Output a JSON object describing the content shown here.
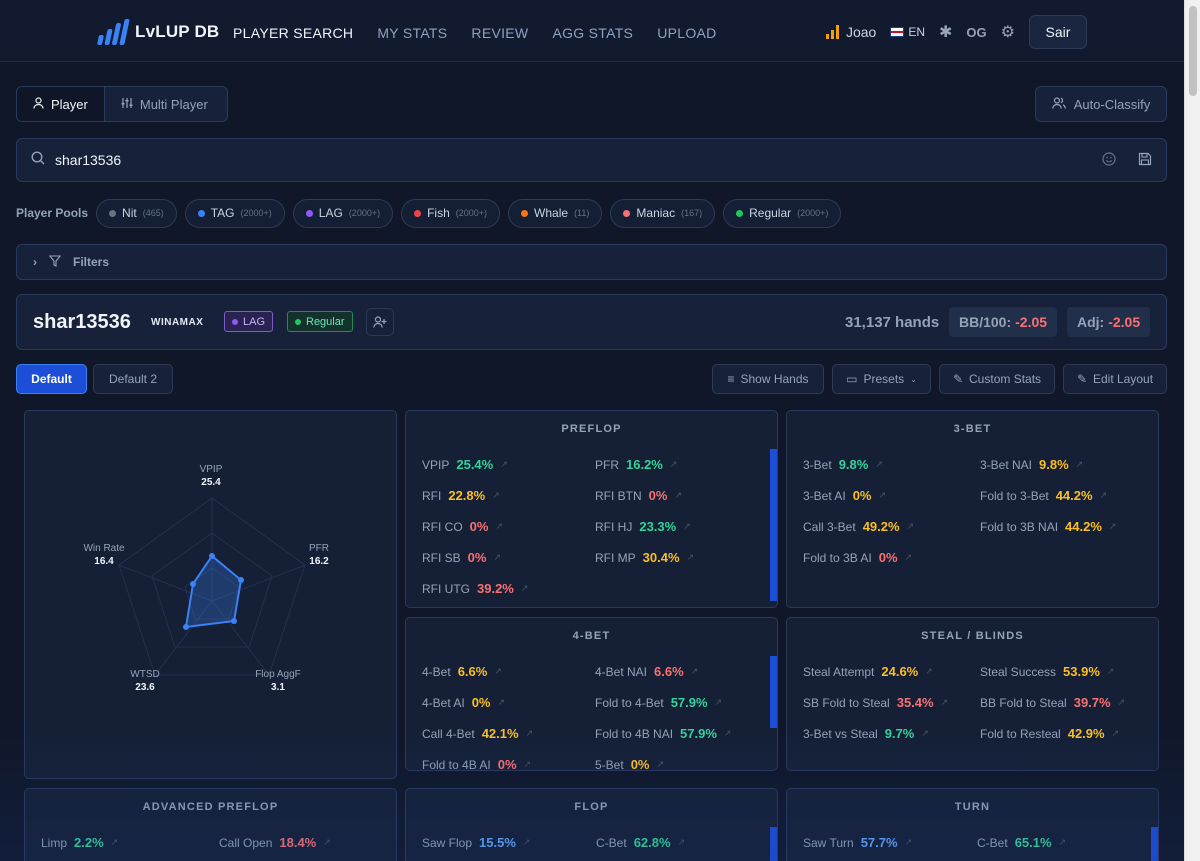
{
  "brand": {
    "name": "LvLUP DB"
  },
  "nav": {
    "links": [
      "PLAYER SEARCH",
      "MY STATS",
      "REVIEW",
      "AGG STATS",
      "UPLOAD"
    ],
    "user": "Joao",
    "lang": "EN",
    "og": "OG",
    "logout": "Sair"
  },
  "mode": {
    "player": "Player",
    "multi": "Multi Player",
    "auto_classify": "Auto-Classify"
  },
  "search": {
    "value": "shar13536"
  },
  "pools": {
    "label": "Player Pools",
    "items": [
      {
        "name": "Nit",
        "count": "(465)",
        "color": "#6b7280"
      },
      {
        "name": "TAG",
        "count": "(2000+)",
        "color": "#3b82f6"
      },
      {
        "name": "LAG",
        "count": "(2000+)",
        "color": "#8b5cf6"
      },
      {
        "name": "Fish",
        "count": "(2000+)",
        "color": "#ef4444"
      },
      {
        "name": "Whale",
        "count": "(11)",
        "color": "#f97316"
      },
      {
        "name": "Maniac",
        "count": "(167)",
        "color": "#f87171"
      },
      {
        "name": "Regular",
        "count": "(2000+)",
        "color": "#22c55e"
      }
    ]
  },
  "filters": {
    "label": "Filters"
  },
  "player": {
    "name": "shar13536",
    "site": "WINAMAX",
    "tag_lag": "LAG",
    "tag_regular": "Regular",
    "hands": "31,137 hands",
    "bb_label": "BB/100:",
    "bb_value": "-2.05",
    "adj_label": "Adj:",
    "adj_value": "-2.05"
  },
  "layout": {
    "tab_default": "Default",
    "tab_default2": "Default 2",
    "show_hands": "Show Hands",
    "presets": "Presets",
    "custom_stats": "Custom Stats",
    "edit_layout": "Edit Layout"
  },
  "radar": {
    "labels": [
      {
        "name": "VPIP",
        "value": "25.4"
      },
      {
        "name": "PFR",
        "value": "16.2"
      },
      {
        "name": "Flop AggF",
        "value": "3.1"
      },
      {
        "name": "WTSD",
        "value": "23.6"
      },
      {
        "name": "Win Rate",
        "value": "16.4"
      }
    ]
  },
  "panels": {
    "preflop": {
      "title": "PREFLOP",
      "stats": [
        {
          "label": "VPIP",
          "value": "25.4%",
          "c": "g"
        },
        {
          "label": "PFR",
          "value": "16.2%",
          "c": "g"
        },
        {
          "label": "RFI",
          "value": "22.8%",
          "c": "y"
        },
        {
          "label": "RFI BTN",
          "value": "0%",
          "c": "r"
        },
        {
          "label": "RFI CO",
          "value": "0%",
          "c": "r"
        },
        {
          "label": "RFI HJ",
          "value": "23.3%",
          "c": "g"
        },
        {
          "label": "RFI SB",
          "value": "0%",
          "c": "r"
        },
        {
          "label": "RFI MP",
          "value": "30.4%",
          "c": "y"
        },
        {
          "label": "RFI UTG",
          "value": "39.2%",
          "c": "r"
        }
      ]
    },
    "threebet": {
      "title": "3-BET",
      "stats": [
        {
          "label": "3-Bet",
          "value": "9.8%",
          "c": "g"
        },
        {
          "label": "3-Bet NAI",
          "value": "9.8%",
          "c": "y"
        },
        {
          "label": "3-Bet AI",
          "value": "0%",
          "c": "y"
        },
        {
          "label": "Fold to 3-Bet",
          "value": "44.2%",
          "c": "y"
        },
        {
          "label": "Call 3-Bet",
          "value": "49.2%",
          "c": "y"
        },
        {
          "label": "Fold to 3B NAI",
          "value": "44.2%",
          "c": "y"
        },
        {
          "label": "Fold to 3B AI",
          "value": "0%",
          "c": "r"
        }
      ]
    },
    "fourbet": {
      "title": "4-BET",
      "stats": [
        {
          "label": "4-Bet",
          "value": "6.6%",
          "c": "y"
        },
        {
          "label": "4-Bet NAI",
          "value": "6.6%",
          "c": "r"
        },
        {
          "label": "4-Bet AI",
          "value": "0%",
          "c": "y"
        },
        {
          "label": "Fold to 4-Bet",
          "value": "57.9%",
          "c": "g"
        },
        {
          "label": "Call 4-Bet",
          "value": "42.1%",
          "c": "y"
        },
        {
          "label": "Fold to 4B NAI",
          "value": "57.9%",
          "c": "g"
        },
        {
          "label": "Fold to 4B AI",
          "value": "0%",
          "c": "r"
        },
        {
          "label": "5-Bet",
          "value": "0%",
          "c": "y"
        }
      ]
    },
    "steal": {
      "title": "STEAL / BLINDS",
      "stats": [
        {
          "label": "Steal Attempt",
          "value": "24.6%",
          "c": "y"
        },
        {
          "label": "Steal Success",
          "value": "53.9%",
          "c": "y"
        },
        {
          "label": "SB Fold to Steal",
          "value": "35.4%",
          "c": "r"
        },
        {
          "label": "BB Fold to Steal",
          "value": "39.7%",
          "c": "r"
        },
        {
          "label": "3-Bet vs Steal",
          "value": "9.7%",
          "c": "g"
        },
        {
          "label": "Fold to Resteal",
          "value": "42.9%",
          "c": "y"
        }
      ]
    },
    "advanced": {
      "title": "ADVANCED PREFLOP",
      "stats": [
        {
          "label": "Limp",
          "value": "2.2%",
          "c": "g"
        },
        {
          "label": "Call Open",
          "value": "18.4%",
          "c": "r"
        }
      ]
    },
    "flop": {
      "title": "FLOP",
      "stats": [
        {
          "label": "Saw Flop",
          "value": "15.5%",
          "c": "b"
        },
        {
          "label": "C-Bet",
          "value": "62.8%",
          "c": "g"
        }
      ]
    },
    "turn": {
      "title": "TURN",
      "stats": [
        {
          "label": "Saw Turn",
          "value": "57.7%",
          "c": "b"
        },
        {
          "label": "C-Bet",
          "value": "65.1%",
          "c": "g"
        }
      ]
    }
  }
}
